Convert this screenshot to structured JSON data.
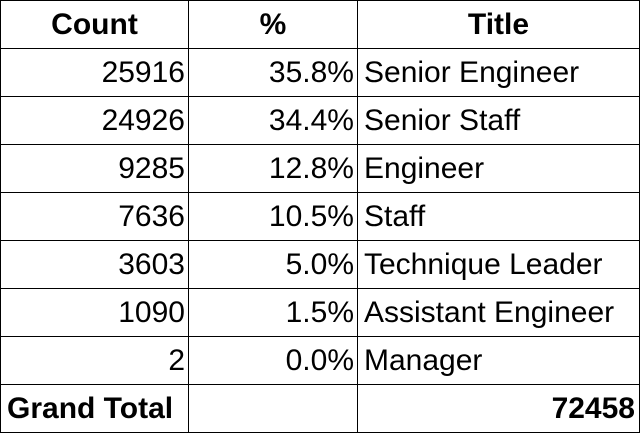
{
  "headers": {
    "count": "Count",
    "percent": "%",
    "title": "Title"
  },
  "rows": [
    {
      "count": "25916",
      "percent": "35.8%",
      "title": "Senior Engineer"
    },
    {
      "count": "24926",
      "percent": "34.4%",
      "title": "Senior Staff"
    },
    {
      "count": "9285",
      "percent": "12.8%",
      "title": "Engineer"
    },
    {
      "count": "7636",
      "percent": "10.5%",
      "title": "Staff"
    },
    {
      "count": "3603",
      "percent": "5.0%",
      "title": "Technique Leader"
    },
    {
      "count": "1090",
      "percent": "1.5%",
      "title": "Assistant Engineer"
    },
    {
      "count": "2",
      "percent": "0.0%",
      "title": "Manager"
    }
  ],
  "total": {
    "label": "Grand Total",
    "value": "72458"
  }
}
